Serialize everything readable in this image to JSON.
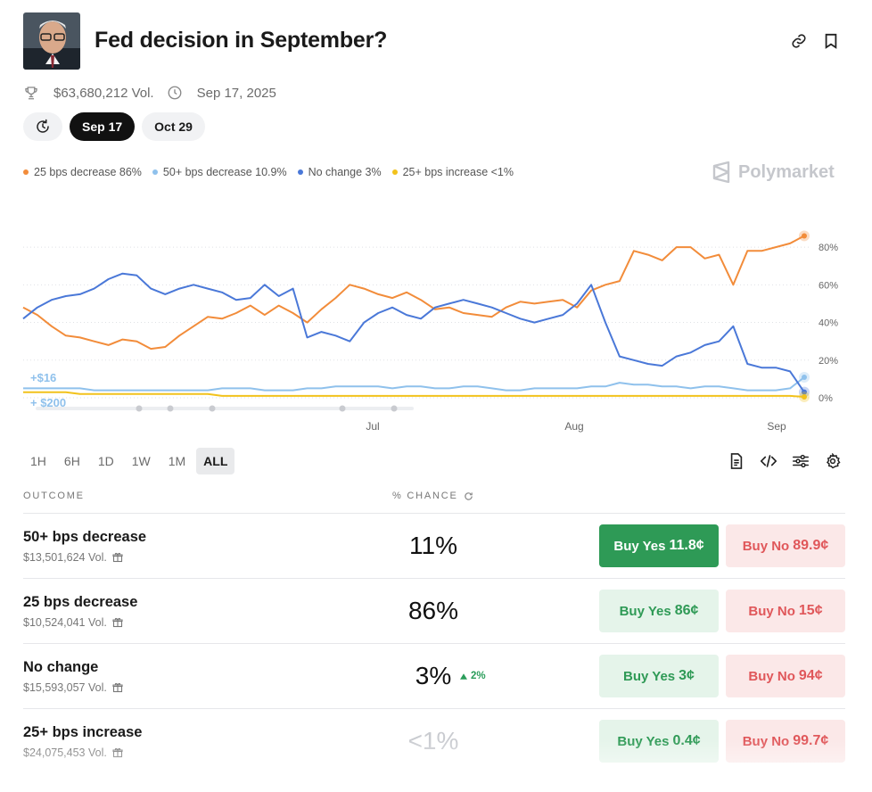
{
  "header": {
    "title": "Fed decision in September?",
    "volume": "$63,680,212 Vol.",
    "end_date": "Sep 17, 2025"
  },
  "date_tabs": [
    {
      "label": "Sep 17",
      "active": true
    },
    {
      "label": "Oct 29",
      "active": false
    }
  ],
  "legend": [
    {
      "label": "25 bps decrease 86%",
      "color": "#f28c3a"
    },
    {
      "label": "50+ bps decrease 10.9%",
      "color": "#8fc1ec"
    },
    {
      "label": "No change 3%",
      "color": "#4a78d8"
    },
    {
      "label": "25+ bps increase <1%",
      "color": "#f2c21b"
    }
  ],
  "brand": "Polymarket",
  "chart_data": {
    "type": "line",
    "x_ticks": [
      "Jul",
      "Aug",
      "Sep"
    ],
    "y_ticks": [
      "80%",
      "60%",
      "40%",
      "20%",
      "0%"
    ],
    "ylim": [
      0,
      90
    ],
    "grid": true,
    "annotations": [
      "+$16",
      "+ $200"
    ],
    "series": [
      {
        "name": "25 bps decrease",
        "color": "#f28c3a",
        "values": [
          48,
          44,
          38,
          33,
          32,
          30,
          28,
          31,
          30,
          26,
          27,
          33,
          38,
          43,
          42,
          45,
          49,
          44,
          49,
          45,
          40,
          47,
          53,
          60,
          58,
          55,
          53,
          56,
          52,
          47,
          48,
          45,
          44,
          43,
          48,
          51,
          50,
          51,
          52,
          48,
          57,
          60,
          62,
          78,
          76,
          73,
          80,
          80,
          74,
          76,
          60,
          78,
          78,
          80,
          82,
          86
        ]
      },
      {
        "name": "50+ bps decrease",
        "color": "#8fc1ec",
        "values": [
          5,
          5,
          5,
          5,
          5,
          4,
          4,
          4,
          4,
          4,
          4,
          4,
          4,
          4,
          5,
          5,
          5,
          4,
          4,
          4,
          5,
          5,
          6,
          6,
          6,
          6,
          5,
          6,
          6,
          5,
          5,
          6,
          6,
          5,
          4,
          4,
          5,
          5,
          5,
          5,
          6,
          6,
          8,
          7,
          7,
          6,
          6,
          5,
          6,
          6,
          5,
          4,
          4,
          4,
          5,
          10.9
        ]
      },
      {
        "name": "No change",
        "color": "#4a78d8",
        "values": [
          42,
          48,
          52,
          54,
          55,
          58,
          63,
          66,
          65,
          58,
          55,
          58,
          60,
          58,
          56,
          52,
          53,
          60,
          54,
          58,
          32,
          35,
          33,
          30,
          40,
          45,
          48,
          44,
          42,
          48,
          50,
          52,
          50,
          48,
          45,
          42,
          40,
          42,
          44,
          50,
          60,
          40,
          22,
          20,
          18,
          17,
          22,
          24,
          28,
          30,
          38,
          18,
          16,
          16,
          14,
          3
        ]
      },
      {
        "name": "25+ bps increase",
        "color": "#f2c21b",
        "values": [
          3,
          3,
          3,
          3,
          2,
          2,
          2,
          2,
          2,
          2,
          2,
          2,
          2,
          2,
          1,
          1,
          1,
          1,
          1,
          1,
          1,
          1,
          1,
          1,
          1,
          1,
          1,
          1,
          1,
          1,
          1,
          1,
          1,
          1,
          1,
          1,
          1,
          1,
          1,
          1,
          1,
          1,
          1,
          1,
          1,
          1,
          1,
          1,
          1,
          1,
          1,
          1,
          1,
          1,
          1,
          0.5
        ]
      }
    ]
  },
  "ranges": [
    {
      "label": "1H",
      "active": false
    },
    {
      "label": "6H",
      "active": false
    },
    {
      "label": "1D",
      "active": false
    },
    {
      "label": "1W",
      "active": false
    },
    {
      "label": "1M",
      "active": false
    },
    {
      "label": "ALL",
      "active": true
    }
  ],
  "table": {
    "col_outcome": "OUTCOME",
    "col_chance": "% CHANCE",
    "rows": [
      {
        "name": "50+ bps decrease",
        "volume": "$13,501,624 Vol.",
        "chance": "11%",
        "delta": "",
        "yes_label": "Buy Yes",
        "yes_price": "11.8¢",
        "no_label": "Buy No",
        "no_price": "89.9¢"
      },
      {
        "name": "25 bps decrease",
        "volume": "$10,524,041 Vol.",
        "chance": "86%",
        "delta": "",
        "yes_label": "Buy Yes",
        "yes_price": "86¢",
        "no_label": "Buy No",
        "no_price": "15¢"
      },
      {
        "name": "No change",
        "volume": "$15,593,057 Vol.",
        "chance": "3%",
        "delta": "2%",
        "yes_label": "Buy Yes",
        "yes_price": "3¢",
        "no_label": "Buy No",
        "no_price": "94¢"
      },
      {
        "name": "25+ bps increase",
        "volume": "$24,075,453 Vol.",
        "chance": "<1%",
        "delta": "",
        "yes_label": "Buy Yes",
        "yes_price": "0.4¢",
        "no_label": "Buy No",
        "no_price": "99.7¢"
      }
    ]
  }
}
